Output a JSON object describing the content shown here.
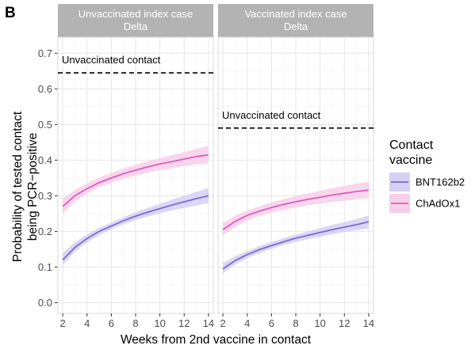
{
  "chart_data": {
    "type": "line",
    "panel_label": "B",
    "ylabel_lines": [
      "Probability of tested contact",
      "being PCR−positive"
    ],
    "xlabel": "Weeks from 2nd vaccine in contact",
    "ylim": [
      -0.03,
      0.745
    ],
    "xlim": [
      1.6,
      14.4
    ],
    "y_ticks": [
      0.0,
      0.1,
      0.2,
      0.3,
      0.4,
      0.5,
      0.6,
      0.7
    ],
    "y_tick_labels": [
      "0.0",
      "0.1",
      "0.2",
      "0.3",
      "0.4",
      "0.5",
      "0.6",
      "0.7"
    ],
    "x_ticks": [
      2,
      4,
      6,
      8,
      10,
      12,
      14
    ],
    "x_tick_labels": [
      "2",
      "4",
      "6",
      "8",
      "10",
      "12",
      "14"
    ],
    "grid": true,
    "legend": {
      "title_lines": [
        "Contact",
        "vaccine"
      ],
      "position": "right",
      "entries": [
        {
          "label": "BNT162b2",
          "color": "#7b68d8",
          "fill": "#d6d0f2"
        },
        {
          "label": "ChAdOx1",
          "color": "#dd5bbf",
          "fill": "#f7cfe9"
        }
      ]
    },
    "panels": [
      {
        "strip_lines": [
          "Unvaccinated index case",
          "Delta"
        ],
        "reference": {
          "label": "Unvaccinated contact",
          "y": 0.645
        },
        "x": [
          2,
          3,
          4,
          5,
          6,
          7,
          8,
          9,
          10,
          11,
          12,
          13,
          14
        ],
        "series": [
          {
            "name": "BNT162b2",
            "y": [
              0.12,
              0.155,
              0.18,
              0.2,
              0.215,
              0.23,
              0.243,
              0.254,
              0.264,
              0.274,
              0.283,
              0.292,
              0.3
            ],
            "lower": [
              0.105,
              0.143,
              0.169,
              0.19,
              0.206,
              0.22,
              0.232,
              0.242,
              0.251,
              0.259,
              0.266,
              0.273,
              0.279
            ],
            "upper": [
              0.14,
              0.169,
              0.192,
              0.21,
              0.225,
              0.24,
              0.254,
              0.266,
              0.277,
              0.289,
              0.3,
              0.311,
              0.321
            ]
          },
          {
            "name": "ChAdOx1",
            "y": [
              0.27,
              0.3,
              0.32,
              0.337,
              0.35,
              0.362,
              0.372,
              0.381,
              0.389,
              0.396,
              0.403,
              0.41,
              0.415
            ],
            "lower": [
              0.25,
              0.284,
              0.306,
              0.324,
              0.337,
              0.348,
              0.357,
              0.365,
              0.372,
              0.378,
              0.383,
              0.388,
              0.391
            ],
            "upper": [
              0.292,
              0.316,
              0.335,
              0.351,
              0.364,
              0.376,
              0.387,
              0.397,
              0.406,
              0.414,
              0.423,
              0.432,
              0.44
            ]
          }
        ]
      },
      {
        "strip_lines": [
          "Vaccinated index case",
          "Delta"
        ],
        "reference": {
          "label": "Unvaccinated contact",
          "y": 0.49
        },
        "x": [
          2,
          3,
          4,
          5,
          6,
          7,
          8,
          9,
          10,
          11,
          12,
          13,
          14
        ],
        "series": [
          {
            "name": "BNT162b2",
            "y": [
              0.095,
              0.118,
              0.135,
              0.149,
              0.16,
              0.171,
              0.181,
              0.189,
              0.197,
              0.205,
              0.212,
              0.219,
              0.227
            ],
            "lower": [
              0.082,
              0.107,
              0.125,
              0.139,
              0.151,
              0.162,
              0.171,
              0.178,
              0.185,
              0.192,
              0.198,
              0.203,
              0.209
            ],
            "upper": [
              0.111,
              0.13,
              0.145,
              0.159,
              0.17,
              0.181,
              0.191,
              0.2,
              0.209,
              0.218,
              0.226,
              0.235,
              0.245
            ]
          },
          {
            "name": "ChAdOx1",
            "y": [
              0.205,
              0.228,
              0.245,
              0.257,
              0.267,
              0.276,
              0.283,
              0.29,
              0.296,
              0.302,
              0.307,
              0.312,
              0.316
            ],
            "lower": [
              0.188,
              0.213,
              0.231,
              0.244,
              0.253,
              0.261,
              0.267,
              0.273,
              0.278,
              0.283,
              0.286,
              0.29,
              0.293
            ],
            "upper": [
              0.224,
              0.244,
              0.259,
              0.27,
              0.281,
              0.29,
              0.299,
              0.307,
              0.314,
              0.321,
              0.328,
              0.334,
              0.34
            ]
          }
        ]
      }
    ]
  }
}
